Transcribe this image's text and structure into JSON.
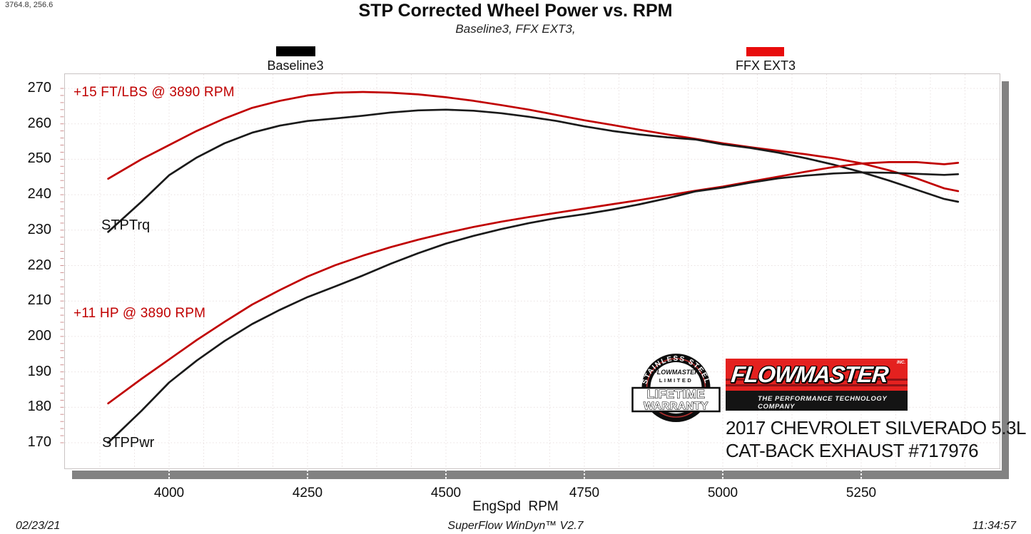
{
  "ui": {
    "readout": "3764.8, 256.6"
  },
  "chart_data": {
    "type": "line",
    "title": "STP Corrected Wheel Power vs. RPM",
    "subtitle": "Baseline3, FFX EXT3,",
    "xlabel": "EngSpd  RPM",
    "x_axis": {
      "label": "EngSpd RPM",
      "min": 3810,
      "max": 5500,
      "major_ticks": [
        4000,
        4250,
        4500,
        4750,
        5000,
        5250
      ],
      "minor_step": 62.5
    },
    "y_axis": {
      "min": 163,
      "max": 274,
      "ticks": [
        270,
        260,
        250,
        240,
        230,
        220,
        210,
        200,
        190,
        180,
        170
      ]
    },
    "grid": true,
    "legend_position": "top",
    "legend": [
      {
        "label": "Baseline3",
        "color": "#000000"
      },
      {
        "label": "FFX EXT3",
        "color": "#e80c0c"
      }
    ],
    "annotations": [
      {
        "text": "+15 FT/LBS @ 3890 RPM",
        "color": "#c00000",
        "x": 3900,
        "y": 268
      },
      {
        "text": "+11 HP @ 3890 RPM",
        "color": "#c00000",
        "x": 3900,
        "y": 205.5
      },
      {
        "text": "STPTrq",
        "color": "#111111",
        "x": 3955,
        "y": 231
      },
      {
        "text": "STPPwr",
        "color": "#111111",
        "x": 3957,
        "y": 169.5
      }
    ],
    "rpm": [
      3890,
      3950,
      4000,
      4050,
      4100,
      4150,
      4200,
      4250,
      4300,
      4350,
      4400,
      4450,
      4500,
      4550,
      4600,
      4650,
      4700,
      4750,
      4800,
      4850,
      4900,
      4950,
      5000,
      5050,
      5100,
      5150,
      5200,
      5250,
      5300,
      5350,
      5400,
      5425
    ],
    "series": [
      {
        "id": "ffx-torque",
        "name": "FFX EXT3 STPTrq",
        "unit": "ft-lb",
        "color": "#c00000",
        "values": [
          244.5,
          250,
          254,
          258,
          261.5,
          264.5,
          266.5,
          268,
          268.8,
          269,
          268.8,
          268.3,
          267.5,
          266.5,
          265.3,
          264,
          262.5,
          261,
          259.7,
          258.3,
          257,
          255.8,
          254.5,
          253.4,
          252.4,
          251.4,
          250.3,
          248.9,
          246.9,
          244.6,
          241.8,
          241
        ]
      },
      {
        "id": "baseline-torque",
        "name": "Baseline3 STPTrq",
        "unit": "ft-lb",
        "color": "#1a1a1a",
        "values": [
          229.5,
          238,
          245.5,
          250.5,
          254.5,
          257.5,
          259.5,
          260.8,
          261.5,
          262.3,
          263.2,
          263.8,
          264,
          263.7,
          263,
          262,
          260.8,
          259.3,
          258,
          257,
          256.2,
          255.6,
          254.2,
          253.2,
          251.9,
          250.3,
          248.5,
          246.4,
          244,
          241.4,
          238.8,
          238
        ]
      },
      {
        "id": "ffx-power",
        "name": "FFX EXT3 STPPwr",
        "unit": "hp",
        "color": "#c00000",
        "values": [
          181.1,
          188,
          193.5,
          199,
          204.1,
          209,
          213.1,
          216.9,
          220.1,
          222.8,
          225.2,
          227.3,
          229.2,
          230.9,
          232.4,
          233.7,
          234.9,
          236.1,
          237.3,
          238.5,
          239.8,
          241.1,
          242.3,
          243.7,
          245.1,
          246.5,
          247.8,
          248.8,
          249.2,
          249.2,
          248.6,
          249
        ]
      },
      {
        "id": "baseline-power",
        "name": "Baseline3 STPPwr",
        "unit": "hp",
        "color": "#1a1a1a",
        "values": [
          170,
          179,
          187,
          193.2,
          198.7,
          203.5,
          207.5,
          211.1,
          214.1,
          217.2,
          220.5,
          223.5,
          226.2,
          228.4,
          230.3,
          232,
          233.4,
          234.5,
          235.8,
          237.3,
          239,
          240.9,
          242,
          243.4,
          244.6,
          245.4,
          246,
          246.3,
          246.2,
          245.9,
          245.6,
          245.8
        ]
      }
    ]
  },
  "footer": {
    "date": "02/23/21",
    "app": "SuperFlow WinDyn™ V2.7",
    "time": "11:34:57"
  },
  "sticker": {
    "arc": "STAINLESS STEEL",
    "brand": "FLOWMASTER",
    "limited": "LIMITED",
    "line1": "LIFETIME",
    "line2": "WARRANTY"
  },
  "logo": {
    "name": "FLOWMASTER",
    "inc": "INC.",
    "tagline": "THE PERFORMANCE TECHNOLOGY COMPANY"
  },
  "vehicle": {
    "line1": "2017 CHEVROLET SILVERADO 5.3L",
    "line2": "CAT-BACK EXHAUST #717976"
  }
}
